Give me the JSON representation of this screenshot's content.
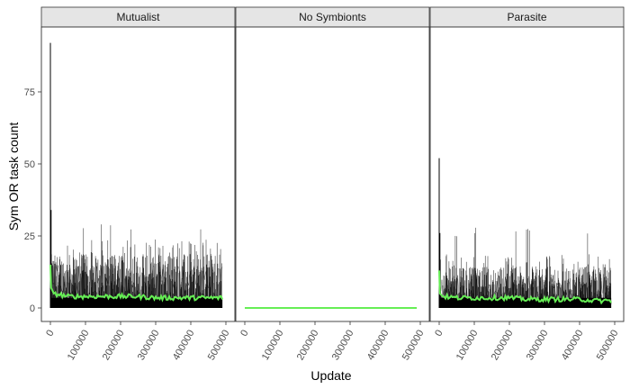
{
  "chart_data": {
    "type": "line",
    "facets": [
      "Mutualist",
      "No Symbionts",
      "Parasite"
    ],
    "xlabel": "Update",
    "ylabel": "Sym OR task count",
    "xlim": [
      0,
      500000
    ],
    "ylim": [
      0,
      92
    ],
    "xticks": [
      0,
      100000,
      200000,
      300000,
      400000,
      500000
    ],
    "xtick_labels": [
      "0",
      "100000",
      "200000",
      "300000",
      "400000",
      "500000"
    ],
    "yticks": [
      0,
      25,
      50,
      75
    ],
    "ytick_labels": [
      "0",
      "25",
      "50",
      "75"
    ],
    "legend": "none",
    "grid": false,
    "colors": {
      "replicates": "#000000",
      "mean": "#66ee55",
      "strip_bg": "#e5e5e5"
    },
    "panels": [
      {
        "facet": "Mutualist",
        "replicates_typical_range": [
          0,
          22
        ],
        "replicates_occasional_peak": 32,
        "early_spikes": [
          {
            "x": 0,
            "y": 92
          },
          {
            "x": 2000,
            "y": 34
          }
        ],
        "mean": {
          "x": [
            0,
            2000,
            10000,
            50000,
            100000,
            150000,
            200000,
            250000,
            300000,
            350000,
            400000,
            450000,
            490000
          ],
          "y": [
            15,
            7,
            5,
            4,
            4,
            4,
            4,
            4,
            3.5,
            3.5,
            3.5,
            3.5,
            3.5
          ]
        }
      },
      {
        "facet": "No Symbionts",
        "replicates_typical_range": [
          0,
          0
        ],
        "replicates_occasional_peak": 0,
        "early_spikes": [],
        "mean": {
          "x": [
            0,
            490000
          ],
          "y": [
            0,
            0
          ]
        }
      },
      {
        "facet": "Parasite",
        "replicates_typical_range": [
          0,
          17
        ],
        "replicates_occasional_peak": 29,
        "early_spikes": [
          {
            "x": 0,
            "y": 52
          },
          {
            "x": 2000,
            "y": 26
          }
        ],
        "mean": {
          "x": [
            0,
            2000,
            10000,
            50000,
            100000,
            150000,
            200000,
            250000,
            300000,
            350000,
            400000,
            450000,
            490000
          ],
          "y": [
            13,
            5,
            4,
            3.5,
            3.5,
            3.5,
            3.5,
            3,
            3,
            3,
            3,
            2.5,
            2.5
          ]
        }
      }
    ]
  }
}
